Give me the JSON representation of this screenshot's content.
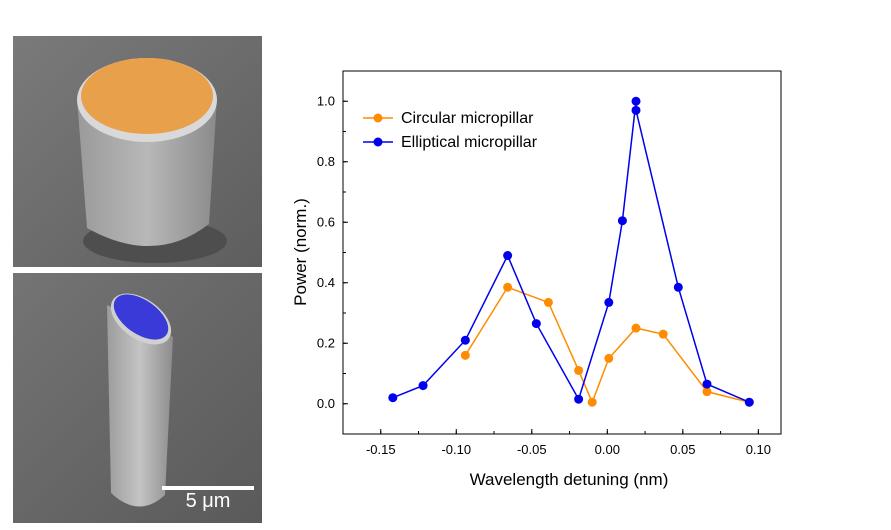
{
  "images": {
    "top_panel": "SEM image of circular micropillar with orange-highlighted top facet",
    "bottom_panel": "SEM image of elliptical micropillar with blue-highlighted top facet",
    "scale_bar_label": "5 μm"
  },
  "colors": {
    "circular": "#ff8c00",
    "elliptical": "#0000ee",
    "sem_background": "#6f6f6f"
  },
  "chart_data": {
    "type": "line",
    "xlabel": "Wavelength detuning (nm)",
    "ylabel": "Power (norm.)",
    "xlim": [
      -0.175,
      0.115
    ],
    "ylim": [
      -0.1,
      1.1
    ],
    "xticks": [
      -0.15,
      -0.1,
      -0.05,
      0.0,
      0.05,
      0.1
    ],
    "xtick_labels": [
      "-0.15",
      "-0.10",
      "-0.05",
      "0.00",
      "0.05",
      "0.10"
    ],
    "yticks": [
      0.0,
      0.2,
      0.4,
      0.6,
      0.8,
      1.0
    ],
    "ytick_labels": [
      "0.0",
      "0.2",
      "0.4",
      "0.6",
      "0.8",
      "1.0"
    ],
    "legend_position": "top-left",
    "series": [
      {
        "name": "Circular micropillar",
        "color": "#ff8c00",
        "x": [
          -0.094,
          -0.066,
          -0.039,
          -0.019,
          -0.01,
          0.001,
          0.019,
          0.037,
          0.066,
          0.094
        ],
        "y": [
          0.16,
          0.385,
          0.335,
          0.11,
          0.005,
          0.15,
          0.25,
          0.23,
          0.04,
          0.005
        ]
      },
      {
        "name": "Elliptical micropillar",
        "color": "#0000ee",
        "x": [
          -0.142,
          -0.122,
          -0.094,
          -0.066,
          -0.047,
          -0.019,
          0.001,
          0.01,
          0.019,
          0.019,
          0.047,
          0.066,
          0.094
        ],
        "y": [
          0.02,
          0.06,
          0.21,
          0.49,
          0.265,
          0.015,
          0.335,
          0.605,
          1.0,
          0.97,
          0.385,
          0.065,
          0.005
        ]
      }
    ]
  }
}
